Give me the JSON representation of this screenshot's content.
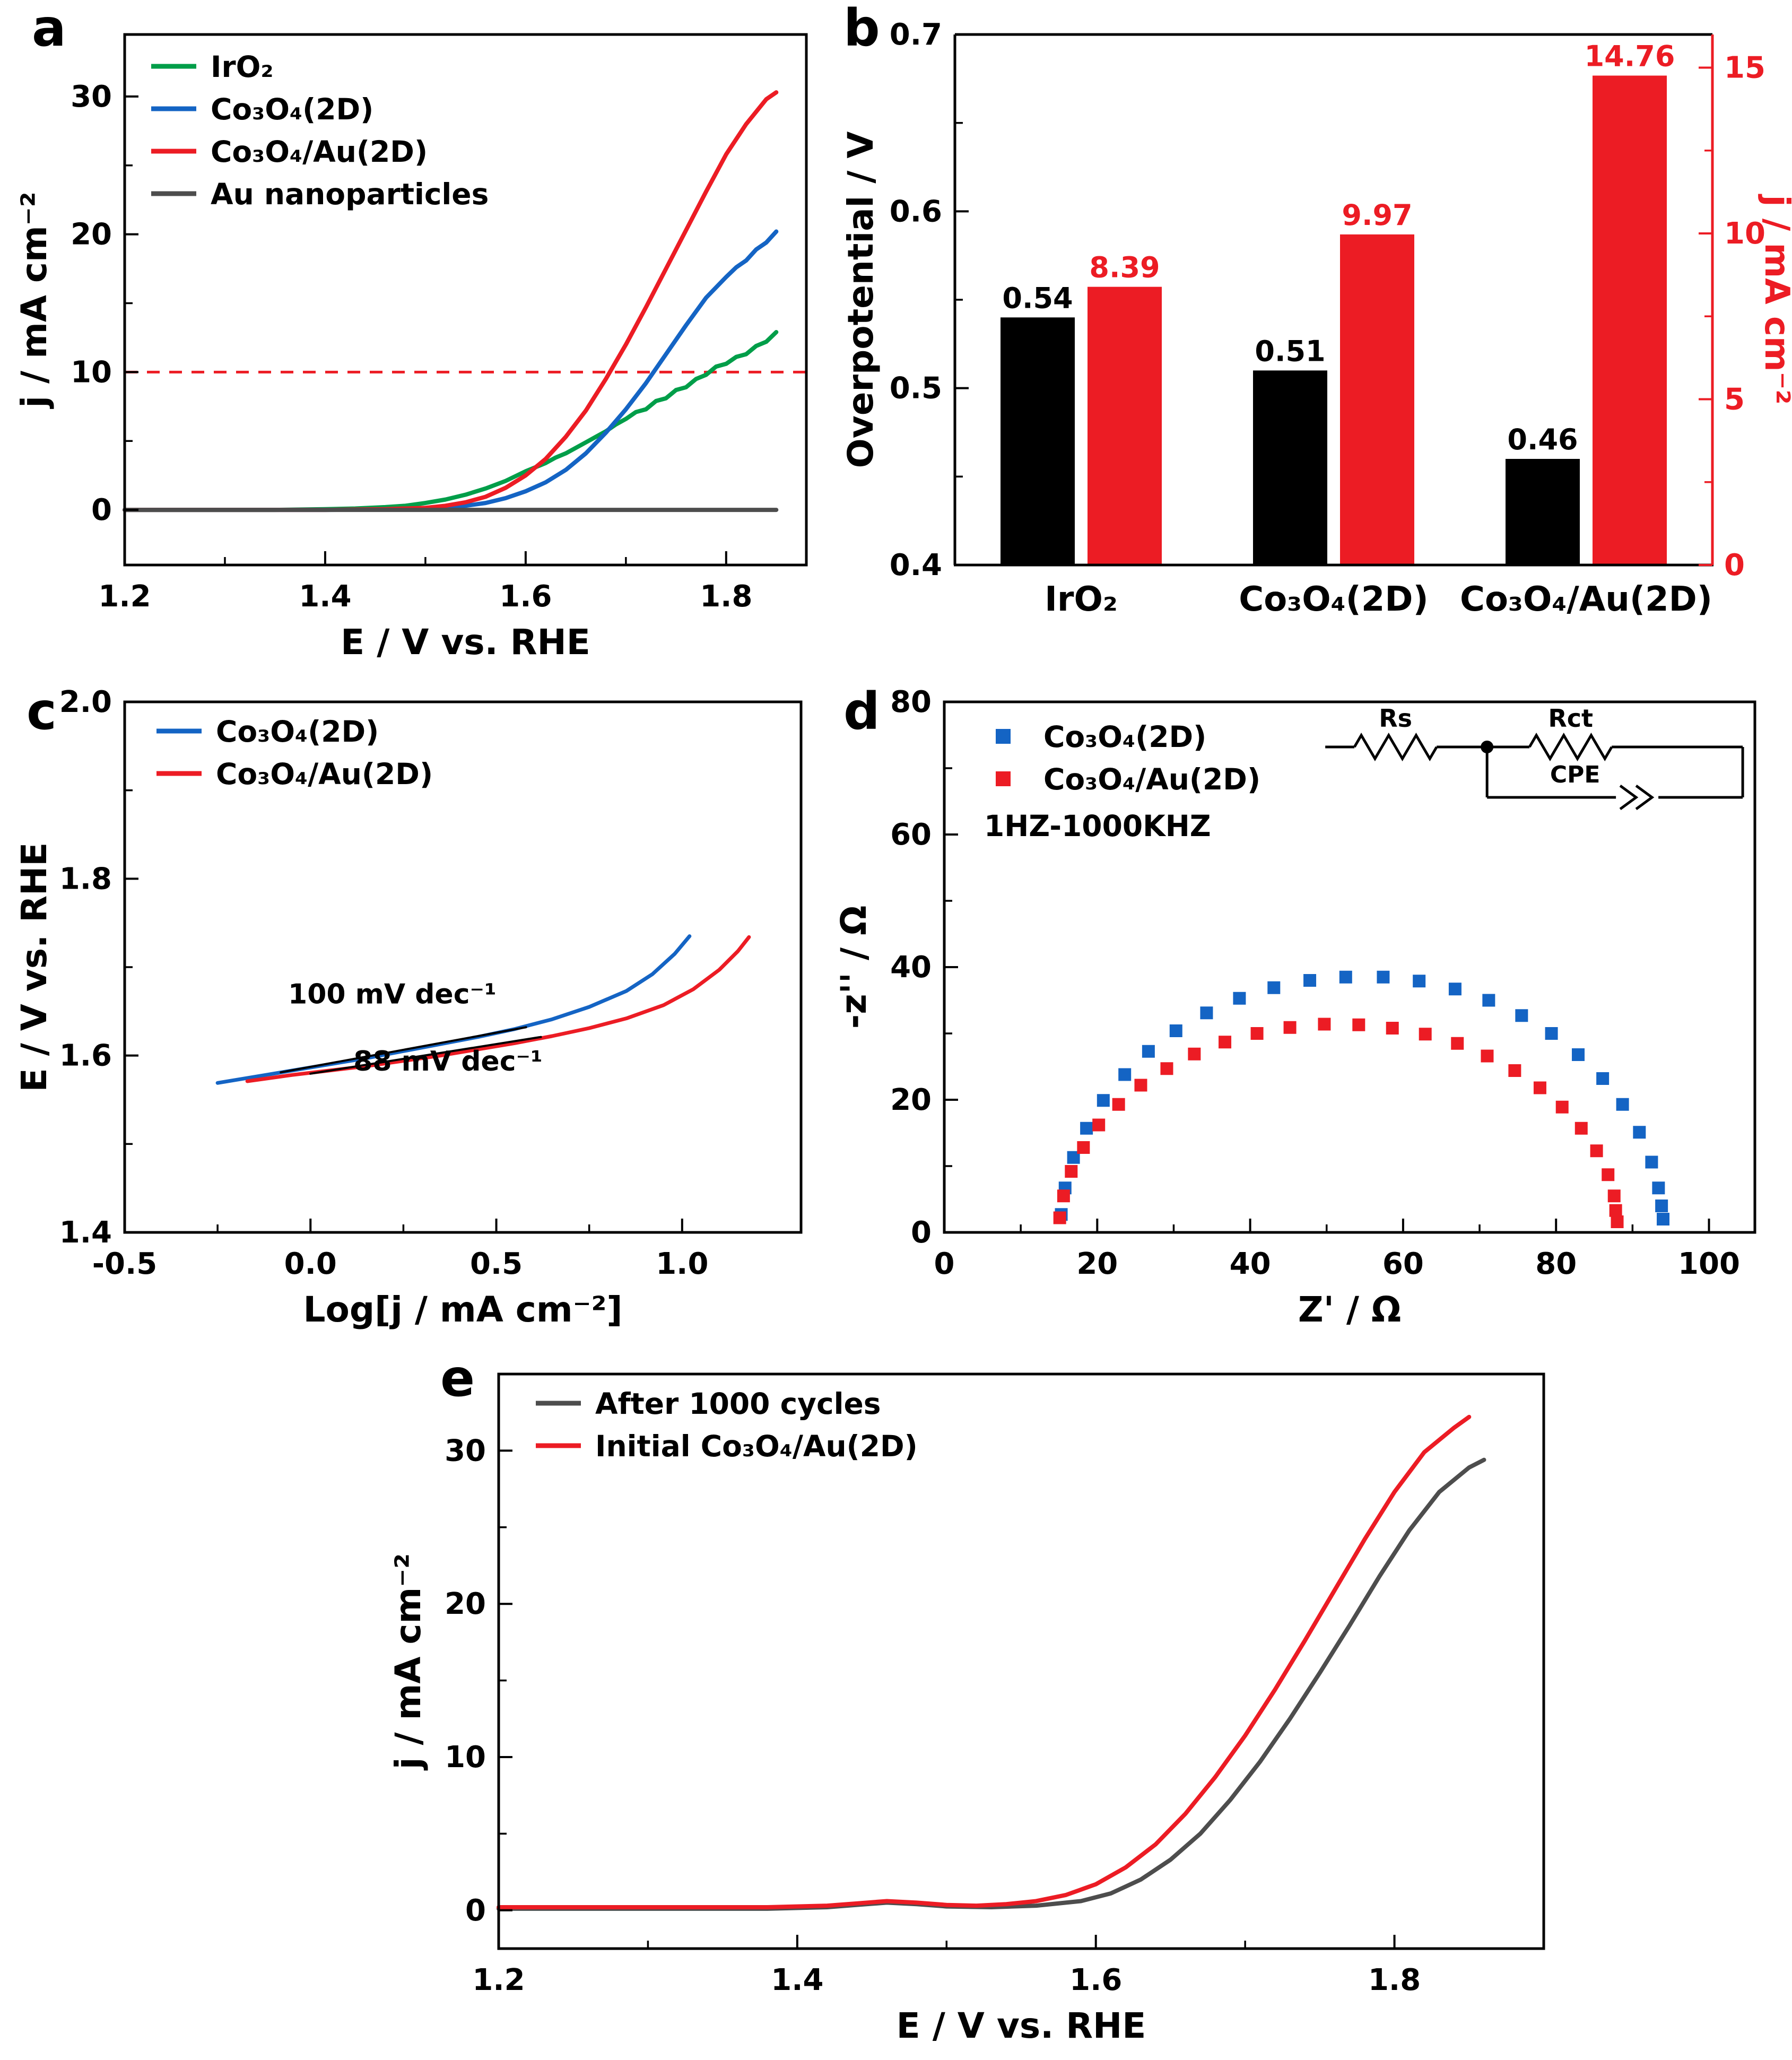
{
  "figure": {
    "description": "Five-panel electrochemical OER performance figure",
    "background": "#ffffff"
  },
  "colors": {
    "green": "#009e49",
    "blue": "#1464c4",
    "red": "#ec1c24",
    "dark_gray": "#4d4d4d",
    "black": "#000000"
  },
  "chart_data": [
    {
      "panel": "a",
      "type": "line",
      "xlabel": "E / V vs. RHE",
      "ylabel": "j / mA cm⁻²",
      "xlim": [
        1.2,
        1.88
      ],
      "ylim": [
        -4,
        34.5
      ],
      "xticks": [
        1.2,
        1.4,
        1.6,
        1.8
      ],
      "xtick_labels": [
        "1.2",
        "1.4",
        "1.6",
        "1.8"
      ],
      "yticks": [
        0,
        10,
        20,
        30
      ],
      "ytick_labels": [
        "0",
        "10",
        "20",
        "30"
      ],
      "legend_position": "top-left",
      "hline": {
        "y": 10,
        "color": "#ec1c24",
        "dash": "24 18"
      },
      "series": [
        {
          "name": "IrO₂",
          "color": "#009e49",
          "x": [
            1.2,
            1.25,
            1.3,
            1.35,
            1.4,
            1.43,
            1.46,
            1.48,
            1.5,
            1.52,
            1.54,
            1.56,
            1.58,
            1.6,
            1.61,
            1.62,
            1.63,
            1.64,
            1.65,
            1.66,
            1.67,
            1.68,
            1.69,
            1.7,
            1.71,
            1.72,
            1.73,
            1.74,
            1.75,
            1.76,
            1.77,
            1.78,
            1.79,
            1.8,
            1.81,
            1.82,
            1.83,
            1.84,
            1.85
          ],
          "y": [
            0,
            0,
            0,
            0,
            0.05,
            0.1,
            0.2,
            0.3,
            0.5,
            0.75,
            1.1,
            1.55,
            2.1,
            2.8,
            3.1,
            3.4,
            3.8,
            4.1,
            4.5,
            4.9,
            5.3,
            5.7,
            6.2,
            6.6,
            7.1,
            7.3,
            7.9,
            8.1,
            8.7,
            8.9,
            9.5,
            9.8,
            10.4,
            10.6,
            11.1,
            11.3,
            11.9,
            12.2,
            12.9
          ]
        },
        {
          "name": "Co₃O₄(2D)",
          "color": "#1464c4",
          "x": [
            1.2,
            1.3,
            1.4,
            1.46,
            1.5,
            1.52,
            1.54,
            1.56,
            1.58,
            1.6,
            1.62,
            1.64,
            1.66,
            1.68,
            1.7,
            1.72,
            1.74,
            1.76,
            1.78,
            1.8,
            1.81,
            1.82,
            1.83,
            1.84,
            1.85
          ],
          "y": [
            0,
            0,
            0,
            0.02,
            0.1,
            0.18,
            0.3,
            0.5,
            0.85,
            1.35,
            2.0,
            2.9,
            4.1,
            5.6,
            7.3,
            9.2,
            11.3,
            13.4,
            15.4,
            16.9,
            17.6,
            18.1,
            18.9,
            19.4,
            20.2
          ]
        },
        {
          "name": "Co₃O₄/Au(2D)",
          "color": "#ec1c24",
          "x": [
            1.2,
            1.3,
            1.4,
            1.46,
            1.5,
            1.52,
            1.54,
            1.56,
            1.58,
            1.6,
            1.62,
            1.64,
            1.66,
            1.68,
            1.7,
            1.72,
            1.74,
            1.76,
            1.78,
            1.8,
            1.82,
            1.84,
            1.85
          ],
          "y": [
            0,
            0,
            0,
            0.05,
            0.15,
            0.3,
            0.55,
            0.95,
            1.6,
            2.5,
            3.7,
            5.3,
            7.2,
            9.5,
            12.0,
            14.7,
            17.5,
            20.3,
            23.1,
            25.8,
            28.0,
            29.8,
            30.3
          ]
        },
        {
          "name": "Au nanoparticles",
          "color": "#4d4d4d",
          "x": [
            1.2,
            1.4,
            1.6,
            1.8,
            1.85
          ],
          "y": [
            0,
            0,
            0,
            0,
            0
          ]
        }
      ]
    },
    {
      "panel": "b",
      "type": "bar",
      "categories": [
        "IrO₂",
        "Co₃O₄(2D)",
        "Co₃O₄/Au(2D)"
      ],
      "left_axis": {
        "label": "Overpotential / V",
        "lim": [
          0.4,
          0.7
        ],
        "ticks": [
          0.4,
          0.5,
          0.6,
          0.7
        ],
        "tick_labels": [
          "0.4",
          "0.5",
          "0.6",
          "0.7"
        ],
        "color": "#000000"
      },
      "right_axis": {
        "label": "j / mA cm⁻²",
        "lim": [
          0,
          16
        ],
        "ticks": [
          0,
          5,
          10,
          15
        ],
        "tick_labels": [
          "0",
          "5",
          "10",
          "15"
        ],
        "color": "#ec1c24"
      },
      "series": [
        {
          "name": "Overpotential / V",
          "axis": "left",
          "color": "#000000",
          "label_color": "#000000",
          "values": [
            0.54,
            0.51,
            0.46
          ],
          "value_labels": [
            "0.54",
            "0.51",
            "0.46"
          ]
        },
        {
          "name": "j / mA cm⁻²",
          "axis": "right",
          "color": "#ec1c24",
          "label_color": "#ec1c24",
          "values": [
            8.39,
            9.97,
            14.76
          ],
          "value_labels": [
            "8.39",
            "9.97",
            "14.76"
          ]
        }
      ]
    },
    {
      "panel": "c",
      "type": "line",
      "xlabel": "Log[j / mA cm⁻²]",
      "ylabel": "E / V vs. RHE",
      "xlim": [
        -0.5,
        1.32
      ],
      "ylim": [
        1.4,
        2.0
      ],
      "xticks": [
        -0.5,
        0,
        0.5,
        1
      ],
      "xtick_labels": [
        "-0.5",
        "0.0",
        "0.5",
        "1.0"
      ],
      "yticks": [
        1.4,
        1.6,
        1.8,
        2.0
      ],
      "ytick_labels": [
        "1.4",
        "1.6",
        "1.8",
        "2.0"
      ],
      "legend_position": "top-left",
      "series": [
        {
          "name": "Co₃O₄(2D)",
          "color": "#1464c4",
          "width": 7,
          "x": [
            -0.25,
            -0.15,
            -0.05,
            0.05,
            0.15,
            0.25,
            0.35,
            0.45,
            0.55,
            0.65,
            0.75,
            0.85,
            0.92,
            0.98,
            1.02
          ],
          "y": [
            1.569,
            1.576,
            1.583,
            1.59,
            1.597,
            1.605,
            1.613,
            1.621,
            1.63,
            1.641,
            1.655,
            1.673,
            1.692,
            1.715,
            1.735
          ]
        },
        {
          "name": "Co₃O₄/Au(2D)",
          "color": "#ec1c24",
          "width": 7,
          "x": [
            -0.17,
            -0.05,
            0.05,
            0.15,
            0.25,
            0.35,
            0.45,
            0.55,
            0.65,
            0.75,
            0.85,
            0.95,
            1.03,
            1.1,
            1.15,
            1.18
          ],
          "y": [
            1.571,
            1.578,
            1.583,
            1.588,
            1.594,
            1.6,
            1.607,
            1.614,
            1.622,
            1.631,
            1.642,
            1.657,
            1.675,
            1.697,
            1.718,
            1.734
          ]
        },
        {
          "name": "tafel-fit-100",
          "color": "#000000",
          "width": 4,
          "no_legend": true,
          "x": [
            -0.08,
            0.58
          ],
          "y": [
            1.581,
            1.632
          ]
        },
        {
          "name": "tafel-fit-88",
          "color": "#000000",
          "width": 4,
          "no_legend": true,
          "x": [
            0.0,
            0.62
          ],
          "y": [
            1.5795,
            1.621
          ]
        }
      ],
      "annotations": [
        {
          "text": "100 mV dec⁻¹",
          "x": 0.22,
          "y": 1.659,
          "color": "#000000"
        },
        {
          "text": "88 mV dec⁻¹",
          "x": 0.37,
          "y": 1.583,
          "color": "#000000"
        }
      ]
    },
    {
      "panel": "d",
      "type": "scatter",
      "xlabel": "Z' / Ω",
      "ylabel": "-z'' / Ω",
      "xlim": [
        0,
        106
      ],
      "ylim": [
        0,
        80
      ],
      "xticks": [
        0,
        20,
        40,
        60,
        80,
        100
      ],
      "xtick_labels": [
        "0",
        "20",
        "40",
        "60",
        "80",
        "100"
      ],
      "yticks": [
        0,
        20,
        40,
        60,
        80
      ],
      "ytick_labels": [
        "0",
        "20",
        "40",
        "60",
        "80"
      ],
      "legend_position": "top-left",
      "annotation_legend": "1HZ-1000KHZ",
      "inset_circuit": {
        "rs_label": "Rs",
        "rct_label": "Rct",
        "cpe_label": "CPE"
      },
      "series": [
        {
          "name": "Co₃O₄(2D)",
          "color": "#1464c4",
          "x": [
            15.3,
            15.8,
            16.9,
            18.6,
            20.8,
            23.6,
            26.7,
            30.3,
            34.3,
            38.6,
            43.1,
            47.8,
            52.5,
            57.4,
            62.1,
            66.8,
            71.2,
            75.5,
            79.4,
            82.9,
            86.1,
            88.7,
            90.9,
            92.5,
            93.4,
            93.8,
            94.0
          ],
          "y": [
            2.7,
            6.7,
            11.3,
            15.7,
            19.9,
            23.8,
            27.3,
            30.4,
            33.1,
            35.3,
            36.9,
            38.0,
            38.5,
            38.5,
            37.9,
            36.7,
            35.0,
            32.7,
            30.0,
            26.8,
            23.2,
            19.3,
            15.1,
            10.6,
            6.7,
            4.0,
            2.0
          ]
        },
        {
          "name": "Co₃O₄/Au(2D)",
          "color": "#ec1c24",
          "x": [
            15.1,
            15.6,
            16.6,
            18.2,
            20.2,
            22.8,
            25.7,
            29.1,
            32.7,
            36.7,
            40.9,
            45.2,
            49.7,
            54.2,
            58.6,
            62.9,
            67.1,
            71.0,
            74.6,
            77.9,
            80.8,
            83.3,
            85.3,
            86.8,
            87.6,
            87.8,
            88.0
          ],
          "y": [
            2.2,
            5.5,
            9.2,
            12.8,
            16.2,
            19.3,
            22.2,
            24.7,
            26.9,
            28.7,
            30.0,
            30.9,
            31.4,
            31.3,
            30.8,
            29.9,
            28.5,
            26.6,
            24.4,
            21.8,
            18.9,
            15.7,
            12.3,
            8.7,
            5.5,
            3.3,
            1.6
          ]
        }
      ]
    },
    {
      "panel": "e",
      "type": "line",
      "xlabel": "E / V vs. RHE",
      "ylabel": "j / mA cm⁻²",
      "xlim": [
        1.2,
        1.9
      ],
      "ylim": [
        -2.5,
        35
      ],
      "xticks": [
        1.2,
        1.4,
        1.6,
        1.8
      ],
      "xtick_labels": [
        "1.2",
        "1.4",
        "1.6",
        "1.8"
      ],
      "yticks": [
        0,
        10,
        20,
        30
      ],
      "ytick_labels": [
        "0",
        "10",
        "20",
        "30"
      ],
      "legend_position": "top-left",
      "series": [
        {
          "name": "After 1000 cycles",
          "color": "#4d4d4d",
          "x": [
            1.2,
            1.3,
            1.38,
            1.42,
            1.44,
            1.46,
            1.48,
            1.5,
            1.53,
            1.56,
            1.59,
            1.61,
            1.63,
            1.65,
            1.67,
            1.69,
            1.71,
            1.73,
            1.75,
            1.77,
            1.79,
            1.81,
            1.83,
            1.85,
            1.86
          ],
          "y": [
            0.1,
            0.1,
            0.1,
            0.2,
            0.35,
            0.5,
            0.4,
            0.25,
            0.2,
            0.3,
            0.6,
            1.1,
            2.0,
            3.3,
            5.0,
            7.2,
            9.7,
            12.5,
            15.5,
            18.6,
            21.8,
            24.8,
            27.3,
            28.9,
            29.4
          ]
        },
        {
          "name": "Initial Co₃O₄/Au(2D)",
          "color": "#ec1c24",
          "x": [
            1.2,
            1.3,
            1.38,
            1.42,
            1.44,
            1.46,
            1.48,
            1.5,
            1.52,
            1.54,
            1.56,
            1.58,
            1.6,
            1.62,
            1.64,
            1.66,
            1.68,
            1.7,
            1.72,
            1.74,
            1.76,
            1.78,
            1.8,
            1.82,
            1.84,
            1.85
          ],
          "y": [
            0.2,
            0.2,
            0.2,
            0.3,
            0.45,
            0.6,
            0.5,
            0.35,
            0.3,
            0.4,
            0.6,
            1.0,
            1.7,
            2.8,
            4.3,
            6.3,
            8.7,
            11.4,
            14.4,
            17.6,
            20.9,
            24.2,
            27.3,
            29.9,
            31.5,
            32.2
          ]
        }
      ]
    }
  ]
}
